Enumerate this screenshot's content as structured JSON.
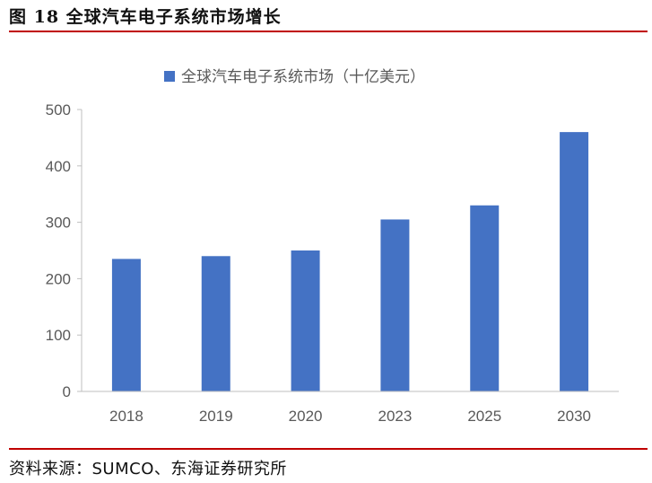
{
  "figure": {
    "title": "图 18  全球汽车电子系统市场增长",
    "source": "资料来源：SUMCO、东海证券研究所"
  },
  "colors": {
    "bar": "#4472c4",
    "rule": "#c00000",
    "axis": "#bfbfbf"
  },
  "chart_data": {
    "type": "bar",
    "categories": [
      "2018",
      "2019",
      "2020",
      "2023",
      "2025",
      "2030"
    ],
    "series": [
      {
        "name": "全球汽车电子系统市场（十亿美元）",
        "values": [
          235,
          240,
          250,
          305,
          330,
          460
        ]
      }
    ],
    "y_ticks": [
      "0",
      "100",
      "200",
      "300",
      "400",
      "500"
    ],
    "ylim": [
      0,
      500
    ],
    "grid": false,
    "legend": "top-center"
  }
}
